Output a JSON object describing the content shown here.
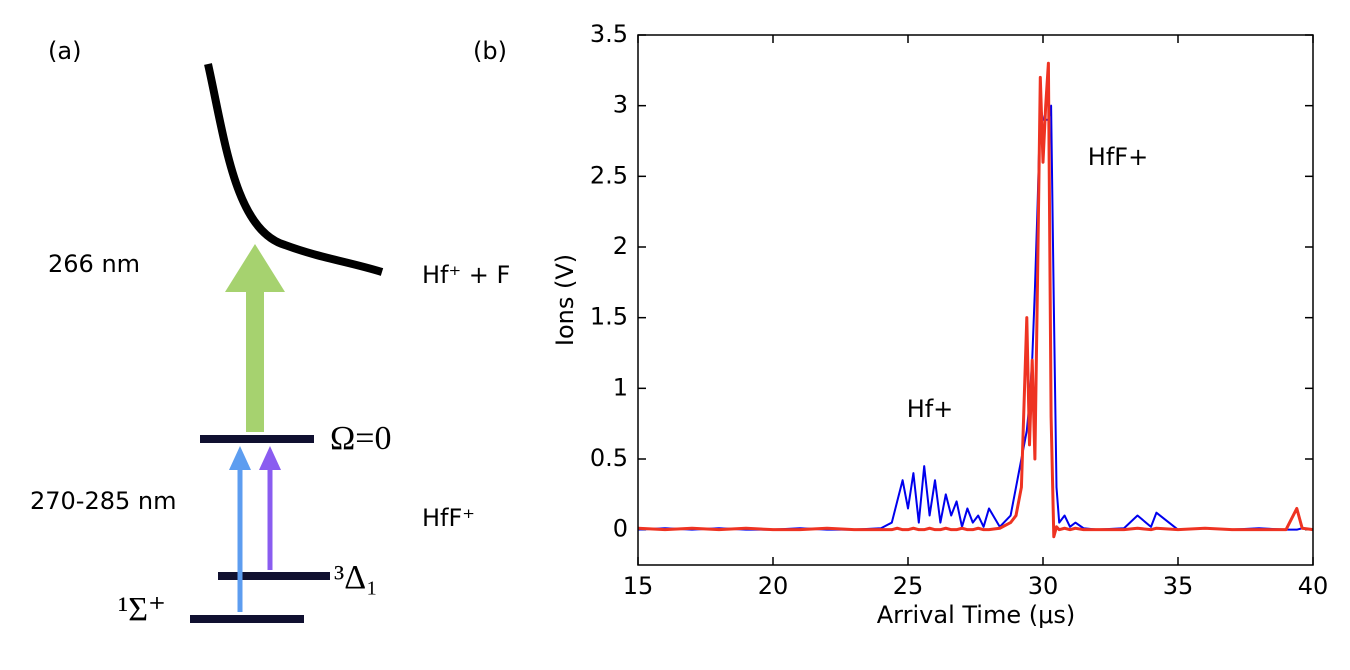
{
  "panel_a": {
    "label": "(a)",
    "dissociation_wavelength": "266 nm",
    "dissociation_products": "Hf⁺ + F",
    "upper_state": "Ω=0",
    "excitation_wavelength": "270-285 nm",
    "molecule": "HfF⁺",
    "metastable_state": "³Δ₁",
    "ground_state": "¹Σ⁺"
  },
  "chart_data": {
    "type": "line",
    "panel_label": "(b)",
    "x_label": "Arrival Time (μs)",
    "y_label": "Ions (V)",
    "annotations": [
      "Hf+",
      "HfF+"
    ],
    "x": [
      15,
      16,
      17,
      18,
      19,
      20,
      21,
      22,
      23,
      24,
      24.4,
      24.6,
      24.8,
      25,
      25.2,
      25.4,
      25.6,
      25.8,
      26,
      26.2,
      26.4,
      26.6,
      26.8,
      27,
      27.2,
      27.4,
      27.6,
      27.8,
      28,
      28.4,
      28.8,
      29,
      29.2,
      29.4,
      29.5,
      29.6,
      29.7,
      29.8,
      29.9,
      30,
      30.1,
      30.2,
      30.3,
      30.4,
      30.5,
      30.6,
      30.8,
      31,
      31.2,
      31.5,
      32,
      33,
      33.5,
      34,
      34.2,
      35,
      36,
      37,
      38,
      39,
      39.4,
      39.6,
      40
    ],
    "series": [
      {
        "color": "#0000ee",
        "values": [
          0,
          0.01,
          0,
          0.01,
          0,
          0,
          0.01,
          0,
          0,
          0.01,
          0.05,
          0.2,
          0.35,
          0.15,
          0.4,
          0.05,
          0.45,
          0.1,
          0.35,
          0.05,
          0.25,
          0.1,
          0.2,
          0.02,
          0.15,
          0.05,
          0.1,
          0.02,
          0.15,
          0.02,
          0.1,
          0.3,
          0.5,
          0.7,
          0.9,
          1.2,
          1.7,
          2.3,
          3.0,
          2.9,
          2.9,
          2.9,
          3.0,
          1.6,
          0.3,
          0.05,
          0.1,
          0.02,
          0.05,
          0.01,
          0,
          0.01,
          0.1,
          0.02,
          0.12,
          0,
          0.01,
          0,
          0.01,
          0,
          0,
          0.01,
          0
        ]
      },
      {
        "color": "#ee3322",
        "values": [
          0.01,
          0,
          0.01,
          0,
          0.01,
          0,
          0,
          0.01,
          0,
          0,
          0,
          0.01,
          0,
          0,
          0.01,
          0,
          0,
          0.01,
          0,
          0,
          0.01,
          0,
          0,
          0.01,
          0,
          0,
          0.01,
          0,
          0,
          0.01,
          0.05,
          0.1,
          0.3,
          1.5,
          0.6,
          1.2,
          0.5,
          1.8,
          3.2,
          2.6,
          3.0,
          3.3,
          0.8,
          -0.05,
          0.02,
          0,
          0.01,
          0,
          0.01,
          0,
          0,
          0,
          0.01,
          0,
          0.01,
          0,
          0.01,
          0,
          0,
          0,
          0.15,
          0.01,
          0
        ]
      }
    ],
    "xlim": [
      15,
      40
    ],
    "xticks": [
      15,
      20,
      25,
      30,
      35,
      40
    ],
    "ylim": [
      -0.25,
      3.5
    ],
    "yticks": [
      0,
      0.5,
      1,
      1.5,
      2,
      2.5,
      3,
      3.5
    ]
  }
}
